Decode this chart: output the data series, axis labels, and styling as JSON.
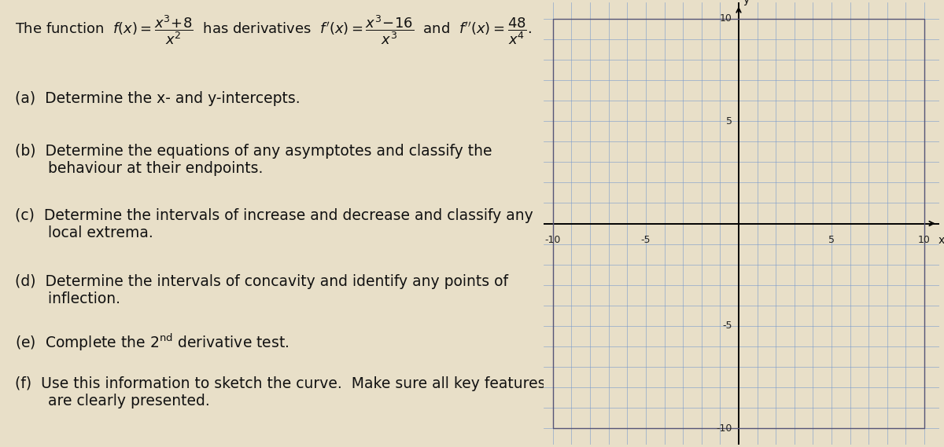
{
  "background_color": "#e8dfc8",
  "graph": {
    "bg_color": "#e8dfc8",
    "grid_color": "#7799cc",
    "axis_color": "#000000",
    "box_color": "#555577",
    "xlim": [
      -10.5,
      10.8
    ],
    "ylim": [
      -10.8,
      10.8
    ],
    "xticks": [
      -10,
      -5,
      5,
      10
    ],
    "yticks": [
      -10,
      -5,
      5,
      10
    ],
    "xtick_labels": [
      "-10",
      "-5",
      "5",
      "10"
    ],
    "ytick_labels": [
      "-10",
      "-5",
      "5",
      "10"
    ],
    "xlabel": "x",
    "ylabel": "y"
  },
  "text": {
    "color": "#111111",
    "title_fontsize": 13,
    "body_fontsize": 13.5
  }
}
